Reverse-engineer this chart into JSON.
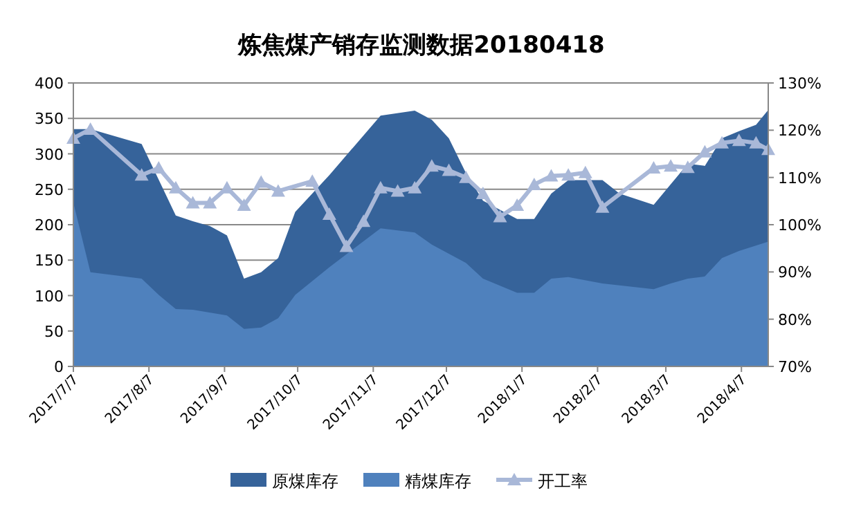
{
  "chart_data": {
    "type": "area",
    "title": "炼焦煤产销存监测数据20180418",
    "xlim": [
      "2017-07-07",
      "2018-04-18"
    ],
    "xticks": [
      {
        "value": "2017-07-07",
        "label": "2017/7/7"
      },
      {
        "value": "2017-08-07",
        "label": "2017/8/7"
      },
      {
        "value": "2017-09-07",
        "label": "2017/9/7"
      },
      {
        "value": "2017-10-07",
        "label": "2017/10/7"
      },
      {
        "value": "2017-11-07",
        "label": "2017/11/7"
      },
      {
        "value": "2017-12-07",
        "label": "2017/12/7"
      },
      {
        "value": "2018-01-07",
        "label": "2018/1/7"
      },
      {
        "value": "2018-02-07",
        "label": "2018/2/7"
      },
      {
        "value": "2018-03-07",
        "label": "2018/3/7"
      },
      {
        "value": "2018-04-07",
        "label": "2018/4/7"
      }
    ],
    "ylim": [
      0,
      400
    ],
    "yticks": [
      0,
      50,
      100,
      150,
      200,
      250,
      300,
      350,
      400
    ],
    "y2lim": [
      70,
      130
    ],
    "y2ticks": [
      {
        "value": 70,
        "label": "70%"
      },
      {
        "value": 80,
        "label": "80%"
      },
      {
        "value": 90,
        "label": "90%"
      },
      {
        "value": 100,
        "label": "100%"
      },
      {
        "value": 110,
        "label": "110%"
      },
      {
        "value": 120,
        "label": "120%"
      },
      {
        "value": 130,
        "label": "130%"
      }
    ],
    "grid": "y",
    "legend": "bottom",
    "series": [
      {
        "name": "原煤库存",
        "color": "#36639a",
        "x": [
          "2017-07-07",
          "2017-07-14",
          "2017-08-04",
          "2017-08-18",
          "2017-08-25",
          "2017-09-01",
          "2017-09-08",
          "2017-09-15",
          "2017-09-22",
          "2017-09-29",
          "2017-10-06",
          "2017-10-20",
          "2017-11-10",
          "2017-11-24",
          "2017-12-01",
          "2017-12-08",
          "2017-12-15",
          "2017-12-22",
          "2018-01-05",
          "2018-01-12",
          "2018-01-19",
          "2018-01-26",
          "2018-02-09",
          "2018-02-16",
          "2018-03-02",
          "2018-03-09",
          "2018-03-16",
          "2018-03-23",
          "2018-03-30",
          "2018-04-06",
          "2018-04-13",
          "2018-04-18"
        ],
        "values": [
          335,
          335,
          314,
          213,
          205,
          198,
          185,
          124,
          133,
          153,
          218,
          270,
          354,
          361,
          348,
          322,
          273,
          234,
          208,
          208,
          244,
          263,
          263,
          244,
          228,
          257,
          286,
          283,
          322,
          332,
          341,
          362
        ]
      },
      {
        "name": "精煤库存",
        "color": "#4f81bd",
        "x": [
          "2017-07-07",
          "2017-07-14",
          "2017-08-04",
          "2017-08-11",
          "2017-08-18",
          "2017-08-25",
          "2017-09-08",
          "2017-09-15",
          "2017-09-22",
          "2017-09-29",
          "2017-10-06",
          "2017-10-20",
          "2017-11-10",
          "2017-11-24",
          "2017-12-01",
          "2017-12-15",
          "2017-12-22",
          "2018-01-05",
          "2018-01-12",
          "2018-01-19",
          "2018-01-26",
          "2018-02-09",
          "2018-03-02",
          "2018-03-09",
          "2018-03-16",
          "2018-03-23",
          "2018-03-30",
          "2018-04-06",
          "2018-04-18"
        ],
        "values": [
          231,
          133,
          124,
          101,
          81,
          80,
          72,
          53,
          55,
          68,
          101,
          140,
          195,
          189,
          172,
          146,
          124,
          104,
          104,
          124,
          126,
          117,
          109,
          117,
          124,
          127,
          153,
          163,
          176
        ]
      },
      {
        "name": "开工率",
        "type": "line",
        "axis": "y2",
        "color": "#a9b8d8",
        "marker": "triangle",
        "x": [
          "2017-07-07",
          "2017-07-14",
          "2017-08-04",
          "2017-08-11",
          "2017-08-18",
          "2017-08-25",
          "2017-09-01",
          "2017-09-08",
          "2017-09-15",
          "2017-09-22",
          "2017-09-29",
          "2017-10-13",
          "2017-10-20",
          "2017-10-27",
          "2017-11-03",
          "2017-11-10",
          "2017-11-17",
          "2017-11-24",
          "2017-12-01",
          "2017-12-08",
          "2017-12-15",
          "2017-12-22",
          "2017-12-29",
          "2018-01-05",
          "2018-01-12",
          "2018-01-19",
          "2018-01-26",
          "2018-02-02",
          "2018-02-09",
          "2018-03-02",
          "2018-03-09",
          "2018-03-16",
          "2018-03-23",
          "2018-03-30",
          "2018-04-06",
          "2018-04-13",
          "2018-04-18"
        ],
        "values": [
          118.3,
          120.2,
          110.5,
          112.0,
          107.8,
          104.6,
          104.6,
          107.8,
          104.1,
          109.0,
          107.1,
          109.2,
          102.2,
          95.4,
          100.7,
          107.8,
          107.1,
          107.8,
          112.4,
          111.5,
          110.0,
          106.6,
          101.7,
          104.1,
          108.5,
          110.3,
          110.5,
          111.0,
          103.7,
          112.0,
          112.4,
          112.1,
          115.4,
          117.3,
          117.8,
          117.3,
          115.9
        ]
      }
    ]
  }
}
